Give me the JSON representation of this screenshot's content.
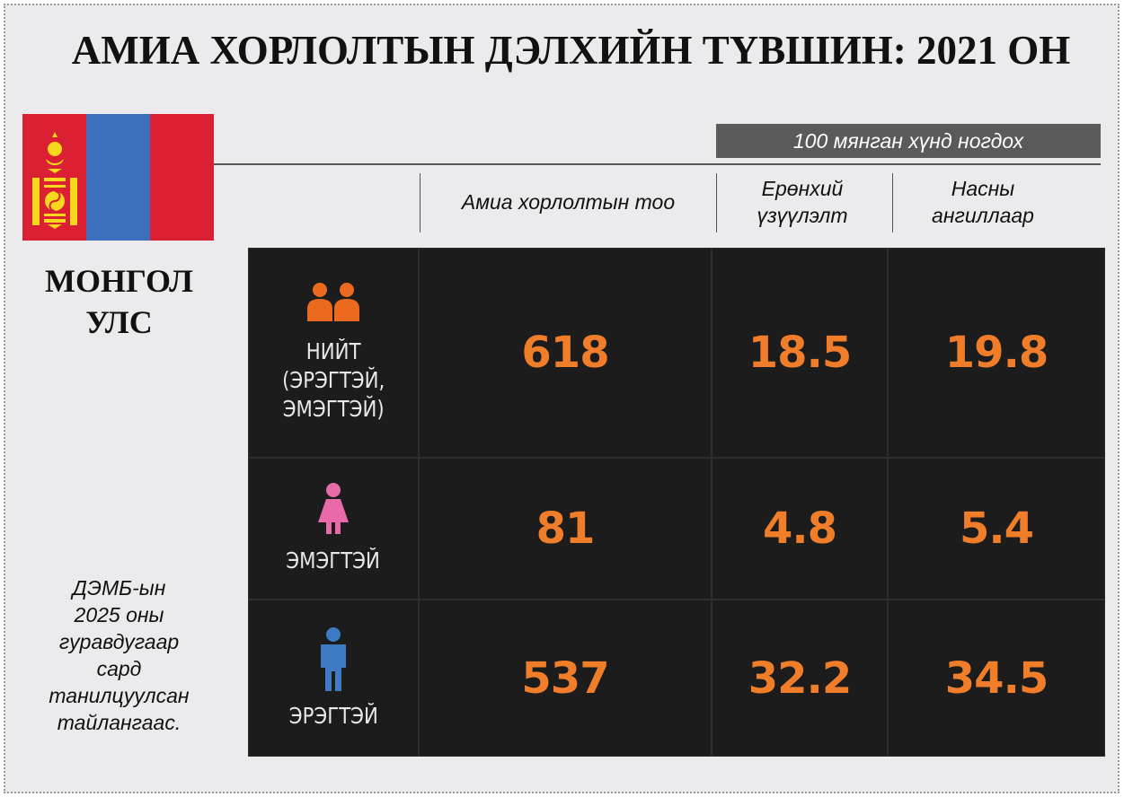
{
  "title": "АМИА ХОРЛОЛТЫН ДЭЛХИЙН ТҮВШИН: 2021 ОН",
  "country": {
    "line1": "МОНГОЛ",
    "line2": "УЛС"
  },
  "unit_label": "100 мянган хүнд ногдох",
  "columns": {
    "count": "Амиа хорлолтын тоо",
    "crude_1": "Ерөнхий",
    "crude_2": "үзүүлэлт",
    "age_1": "Насны",
    "age_2": "ангиллаар"
  },
  "rows": [
    {
      "label_lines": [
        "НИЙТ",
        "(ЭРЭГТЭЙ,",
        "ЭМЭГТЭЙ)"
      ],
      "count": "618",
      "crude": "18.5",
      "age": "19.8",
      "icon_color": "#ec6a1f"
    },
    {
      "label_lines": [
        "ЭМЭГТЭЙ"
      ],
      "count": "81",
      "crude": "4.8",
      "age": "5.4",
      "icon_color": "#e96aa8"
    },
    {
      "label_lines": [
        "ЭРЭГТЭЙ"
      ],
      "count": "537",
      "crude": "32.2",
      "age": "34.5",
      "icon_color": "#3f7bc4"
    }
  ],
  "source_lines": [
    "ДЭМБ-ын",
    "2025 оны",
    "гуравдугаар",
    "сард",
    "танилцуулсан",
    "тайлангаас."
  ],
  "colors": {
    "flag_red": "#da2032",
    "flag_blue": "#3c70bc",
    "accent": "#f07d2a"
  }
}
